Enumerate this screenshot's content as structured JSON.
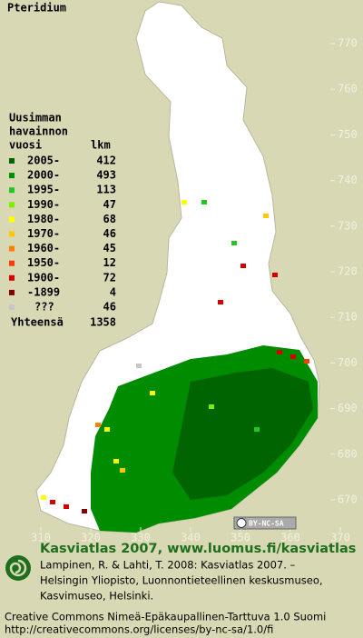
{
  "title": "Pteridium",
  "legend": {
    "header": [
      "Uusimman",
      "havainnon",
      "vuosi"
    ],
    "count_header": "lkm",
    "entries": [
      {
        "label": "2005-",
        "count": 412,
        "color": "#006400"
      },
      {
        "label": "2000-",
        "count": 493,
        "color": "#008c00"
      },
      {
        "label": "1995-",
        "count": 113,
        "color": "#22c822"
      },
      {
        "label": "1990-",
        "count": 47,
        "color": "#7cf000"
      },
      {
        "label": "1980-",
        "count": 68,
        "color": "#ffff00"
      },
      {
        "label": "1970-",
        "count": 46,
        "color": "#ffc800"
      },
      {
        "label": "1960-",
        "count": 45,
        "color": "#ff8000"
      },
      {
        "label": "1950-",
        "count": 12,
        "color": "#ff3c00"
      },
      {
        "label": "1900-",
        "count": 72,
        "color": "#d20000"
      },
      {
        "label": "-1899",
        "count": 4,
        "color": "#820000"
      },
      {
        "label": "???",
        "count": 46,
        "color": "#c8c8c8"
      }
    ],
    "total_label": "Yhteensä",
    "total": 1358
  },
  "axes": {
    "yticks": [
      670,
      680,
      690,
      700,
      710,
      720,
      730,
      740,
      750,
      760,
      770
    ],
    "xticks": [
      310,
      320,
      330,
      340,
      350,
      360,
      370
    ]
  },
  "license_badge": "BY-NC-SA",
  "footer": {
    "heading": "Kasviatlas 2007, www.luomus.fi/kasviatlas",
    "citation": [
      "Lampinen, R. & Lahti, T. 2008: Kasviatlas 2007. –",
      "Helsingin Yliopisto, Luonnontieteellinen keskusmuseo,",
      "Kasvimuseo, Helsinki."
    ],
    "license": [
      "Creative Commons Nimeä-Epäkaupallinen-Tarttuva 1.0 Suomi",
      "http://creativecommons.org/licenses/by-nc-sa/1.0/fi"
    ]
  }
}
